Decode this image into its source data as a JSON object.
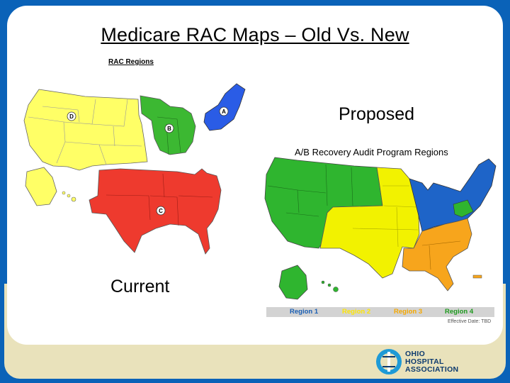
{
  "title": "Medicare RAC Maps – Old Vs. New",
  "old_map": {
    "heading": "RAC Regions",
    "caption": "Current",
    "region_markers": [
      "A",
      "B",
      "C",
      "D"
    ],
    "colors": {
      "A": "#2a5ce6",
      "B": "#3cb832",
      "C": "#ee3a2e",
      "D": "#ffff66"
    }
  },
  "new_map": {
    "caption": "Proposed",
    "heading": "A/B Recovery Audit Program Regions",
    "legend": [
      {
        "label": "Region 1",
        "color": "#1a5fb4"
      },
      {
        "label": "Region 2",
        "color": "#ffe600"
      },
      {
        "label": "Region 3",
        "color": "#f5a800"
      },
      {
        "label": "Region 4",
        "color": "#1e9a1e"
      }
    ],
    "note": "Effective Date: TBD",
    "colors": {
      "region1": "#1e64c8",
      "region2": "#f2f200",
      "region3": "#f7a51c",
      "region4": "#2fb52f"
    }
  },
  "logo": {
    "line1": "OHIO",
    "line2": "HOSPITAL",
    "line3": "ASSOCIATION",
    "icon": "ohio-hospital-association-logo"
  }
}
